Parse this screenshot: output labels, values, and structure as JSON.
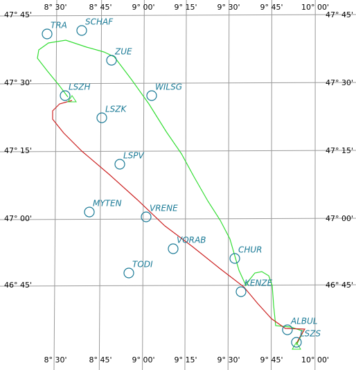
{
  "grid": {
    "longitude_labels": [
      "8° 30'",
      "8° 45'",
      "9° 00'",
      "9° 15'",
      "9° 30'",
      "9° 45'",
      "10° 00'"
    ],
    "latitude_labels": [
      "47° 45'",
      "47° 30'",
      "47° 15'",
      "47° 00'",
      "46° 45'"
    ]
  },
  "waypoints": [
    {
      "label": "TRA"
    },
    {
      "label": "SCHAF"
    },
    {
      "label": "ZUE"
    },
    {
      "label": "LSZH"
    },
    {
      "label": "WILSG"
    },
    {
      "label": "LSZK"
    },
    {
      "label": "LSPV"
    },
    {
      "label": "MYTEN"
    },
    {
      "label": "VRENE"
    },
    {
      "label": "VORAB"
    },
    {
      "label": "TODI"
    },
    {
      "label": "CHUR"
    },
    {
      "label": "KENZE"
    },
    {
      "label": "ALBUL"
    },
    {
      "label": "LSZS"
    }
  ]
}
